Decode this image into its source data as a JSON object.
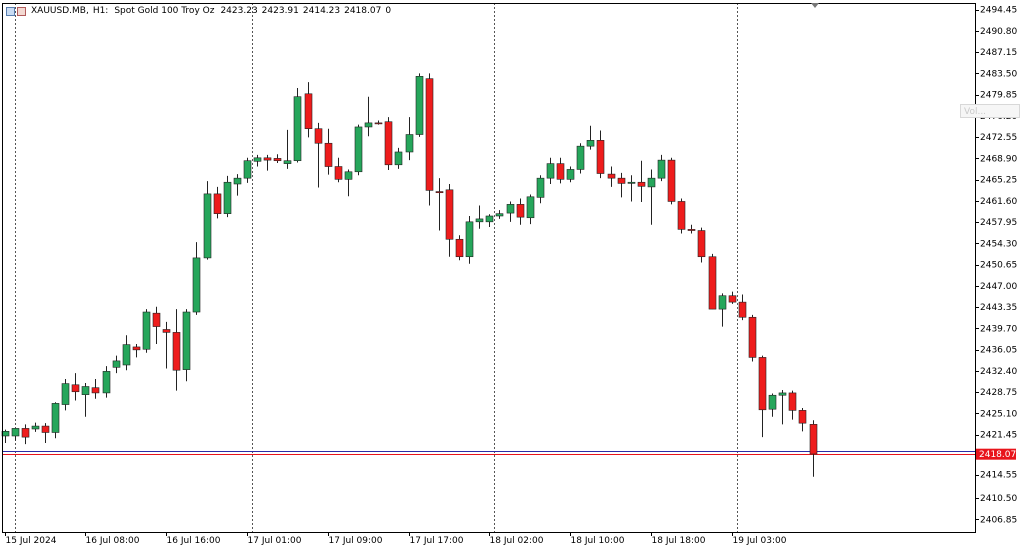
{
  "header": {
    "symbol": "XAUUSD.MB,",
    "timeframe": "H1:",
    "description": "Spot Gold 100 Troy Oz",
    "open": "2423.23",
    "high": "2423.91",
    "low": "2414.23",
    "close": "2418.07",
    "extra": "0"
  },
  "ghost_label": "Vol...",
  "chart_data": {
    "type": "candlestick",
    "symbol": "XAUUSD.MB",
    "timeframe": "H1",
    "ylim": [
      2404.7,
      2495.6
    ],
    "y_tick_labels": [
      "2494.45",
      "2490.80",
      "2487.15",
      "2483.50",
      "2479.85",
      "2476.20",
      "2472.55",
      "2468.90",
      "2465.25",
      "2461.60",
      "2457.95",
      "2454.30",
      "2450.65",
      "2447.00",
      "2443.35",
      "2439.70",
      "2436.05",
      "2432.40",
      "2428.75",
      "2425.10",
      "2421.45",
      "2418.07",
      "2414.55",
      "2410.50",
      "2406.85"
    ],
    "x_tick_labels": [
      "15 Jul 2024",
      "16 Jul 08:00",
      "16 Jul 16:00",
      "17 Jul 01:00",
      "17 Jul 09:00",
      "17 Jul 17:00",
      "18 Jul 02:00",
      "18 Jul 10:00",
      "18 Jul 18:00",
      "19 Jul 03:00"
    ],
    "x_tick_bars": [
      0,
      8,
      16,
      24,
      32,
      40,
      48,
      56,
      64,
      72
    ],
    "session_separator_bars": [
      1,
      24.5,
      48.5,
      72.5
    ],
    "bid_price": 2418.07,
    "ask_price": 2418.57,
    "bid_color": "#e8141b",
    "ask_color": "#2b2ba6",
    "bull_color": "#26a65b",
    "bear_color": "#ee1c1c",
    "candles": [
      {
        "o": 2421.2,
        "h": 2422.3,
        "l": 2420.0,
        "c": 2422.0
      },
      {
        "o": 2421.2,
        "h": 2422.6,
        "l": 2420.4,
        "c": 2422.5
      },
      {
        "o": 2422.5,
        "h": 2423.2,
        "l": 2419.8,
        "c": 2421.0
      },
      {
        "o": 2422.4,
        "h": 2423.5,
        "l": 2421.9,
        "c": 2422.9
      },
      {
        "o": 2422.9,
        "h": 2423.4,
        "l": 2420.0,
        "c": 2421.8
      },
      {
        "o": 2421.8,
        "h": 2427.0,
        "l": 2420.8,
        "c": 2426.8
      },
      {
        "o": 2426.6,
        "h": 2431.0,
        "l": 2425.6,
        "c": 2430.2
      },
      {
        "o": 2430.0,
        "h": 2432.0,
        "l": 2427.3,
        "c": 2428.8
      },
      {
        "o": 2428.3,
        "h": 2430.3,
        "l": 2424.5,
        "c": 2429.7
      },
      {
        "o": 2429.5,
        "h": 2431.0,
        "l": 2427.6,
        "c": 2428.6
      },
      {
        "o": 2428.6,
        "h": 2433.2,
        "l": 2427.8,
        "c": 2432.3
      },
      {
        "o": 2433.0,
        "h": 2435.0,
        "l": 2432.0,
        "c": 2434.1
      },
      {
        "o": 2433.4,
        "h": 2438.5,
        "l": 2432.5,
        "c": 2436.9
      },
      {
        "o": 2436.5,
        "h": 2437.0,
        "l": 2434.7,
        "c": 2436.0
      },
      {
        "o": 2436.1,
        "h": 2443.0,
        "l": 2435.5,
        "c": 2442.5
      },
      {
        "o": 2442.3,
        "h": 2443.4,
        "l": 2437.0,
        "c": 2440.0
      },
      {
        "o": 2439.5,
        "h": 2440.8,
        "l": 2432.8,
        "c": 2439.0
      },
      {
        "o": 2439.0,
        "h": 2443.0,
        "l": 2429.0,
        "c": 2432.5
      },
      {
        "o": 2432.6,
        "h": 2443.0,
        "l": 2430.6,
        "c": 2442.5
      },
      {
        "o": 2442.5,
        "h": 2454.5,
        "l": 2442.0,
        "c": 2451.8
      },
      {
        "o": 2451.8,
        "h": 2465.0,
        "l": 2451.5,
        "c": 2462.8
      },
      {
        "o": 2462.8,
        "h": 2464.0,
        "l": 2458.6,
        "c": 2459.4
      },
      {
        "o": 2459.4,
        "h": 2465.9,
        "l": 2458.8,
        "c": 2464.8
      },
      {
        "o": 2464.5,
        "h": 2466.2,
        "l": 2462.5,
        "c": 2465.5
      },
      {
        "o": 2465.5,
        "h": 2469.0,
        "l": 2464.7,
        "c": 2468.5
      },
      {
        "o": 2468.4,
        "h": 2469.5,
        "l": 2467.5,
        "c": 2469.0
      },
      {
        "o": 2469.0,
        "h": 2469.5,
        "l": 2466.8,
        "c": 2468.6
      },
      {
        "o": 2468.9,
        "h": 2469.6,
        "l": 2468.1,
        "c": 2468.5
      },
      {
        "o": 2468.0,
        "h": 2473.8,
        "l": 2467.1,
        "c": 2468.5
      },
      {
        "o": 2468.5,
        "h": 2481.0,
        "l": 2468.2,
        "c": 2479.5
      },
      {
        "o": 2480.0,
        "h": 2482.0,
        "l": 2472.5,
        "c": 2474.0
      },
      {
        "o": 2474.0,
        "h": 2475.0,
        "l": 2463.9,
        "c": 2471.5
      },
      {
        "o": 2471.5,
        "h": 2474.0,
        "l": 2466.1,
        "c": 2467.5
      },
      {
        "o": 2467.5,
        "h": 2469.0,
        "l": 2464.8,
        "c": 2465.3
      },
      {
        "o": 2465.3,
        "h": 2467.0,
        "l": 2462.4,
        "c": 2466.6
      },
      {
        "o": 2466.6,
        "h": 2474.7,
        "l": 2466.0,
        "c": 2474.3
      },
      {
        "o": 2474.3,
        "h": 2479.5,
        "l": 2472.7,
        "c": 2475.0
      },
      {
        "o": 2475.0,
        "h": 2475.4,
        "l": 2474.7,
        "c": 2474.9
      },
      {
        "o": 2475.2,
        "h": 2476.0,
        "l": 2466.9,
        "c": 2467.8
      },
      {
        "o": 2467.8,
        "h": 2470.7,
        "l": 2467.1,
        "c": 2470.0
      },
      {
        "o": 2470.0,
        "h": 2476.0,
        "l": 2468.6,
        "c": 2473.0
      },
      {
        "o": 2473.0,
        "h": 2483.5,
        "l": 2472.6,
        "c": 2483.0
      },
      {
        "o": 2482.6,
        "h": 2483.5,
        "l": 2460.8,
        "c": 2463.4
      },
      {
        "o": 2463.2,
        "h": 2465.5,
        "l": 2456.5,
        "c": 2463.0
      },
      {
        "o": 2463.5,
        "h": 2464.5,
        "l": 2452.0,
        "c": 2455.0
      },
      {
        "o": 2455.0,
        "h": 2455.7,
        "l": 2451.4,
        "c": 2452.0
      },
      {
        "o": 2452.0,
        "h": 2459.0,
        "l": 2450.8,
        "c": 2458.0
      },
      {
        "o": 2458.0,
        "h": 2460.8,
        "l": 2456.8,
        "c": 2458.5
      },
      {
        "o": 2458.0,
        "h": 2459.3,
        "l": 2457.1,
        "c": 2459.0
      },
      {
        "o": 2459.0,
        "h": 2460.0,
        "l": 2458.5,
        "c": 2459.4
      },
      {
        "o": 2459.5,
        "h": 2461.5,
        "l": 2458.0,
        "c": 2461.0
      },
      {
        "o": 2461.0,
        "h": 2462.0,
        "l": 2457.5,
        "c": 2458.8
      },
      {
        "o": 2458.7,
        "h": 2462.7,
        "l": 2457.6,
        "c": 2462.3
      },
      {
        "o": 2462.2,
        "h": 2466.0,
        "l": 2461.2,
        "c": 2465.5
      },
      {
        "o": 2465.5,
        "h": 2469.0,
        "l": 2464.5,
        "c": 2468.0
      },
      {
        "o": 2468.0,
        "h": 2469.0,
        "l": 2464.6,
        "c": 2465.3
      },
      {
        "o": 2465.3,
        "h": 2467.5,
        "l": 2464.8,
        "c": 2467.0
      },
      {
        "o": 2467.0,
        "h": 2471.5,
        "l": 2466.3,
        "c": 2471.0
      },
      {
        "o": 2471.0,
        "h": 2474.5,
        "l": 2470.4,
        "c": 2472.0
      },
      {
        "o": 2472.0,
        "h": 2473.7,
        "l": 2465.5,
        "c": 2466.3
      },
      {
        "o": 2466.2,
        "h": 2467.5,
        "l": 2464.0,
        "c": 2465.5
      },
      {
        "o": 2465.5,
        "h": 2466.4,
        "l": 2462.2,
        "c": 2464.6
      },
      {
        "o": 2464.6,
        "h": 2466.0,
        "l": 2461.5,
        "c": 2464.8
      },
      {
        "o": 2464.8,
        "h": 2468.5,
        "l": 2461.4,
        "c": 2464.1
      },
      {
        "o": 2464.0,
        "h": 2467.0,
        "l": 2457.5,
        "c": 2465.5
      },
      {
        "o": 2465.5,
        "h": 2469.5,
        "l": 2465.0,
        "c": 2468.6
      },
      {
        "o": 2468.6,
        "h": 2469.0,
        "l": 2461.0,
        "c": 2461.5
      },
      {
        "o": 2461.5,
        "h": 2462.0,
        "l": 2456.0,
        "c": 2456.7
      },
      {
        "o": 2456.7,
        "h": 2457.5,
        "l": 2456.0,
        "c": 2456.5
      },
      {
        "o": 2456.5,
        "h": 2457.0,
        "l": 2451.0,
        "c": 2452.0
      },
      {
        "o": 2452.0,
        "h": 2452.5,
        "l": 2443.0,
        "c": 2443.0
      },
      {
        "o": 2443.0,
        "h": 2445.7,
        "l": 2440.0,
        "c": 2445.3
      },
      {
        "o": 2445.3,
        "h": 2446.0,
        "l": 2443.9,
        "c": 2444.2
      },
      {
        "o": 2444.2,
        "h": 2445.5,
        "l": 2441.1,
        "c": 2441.6
      },
      {
        "o": 2441.6,
        "h": 2442.0,
        "l": 2434.0,
        "c": 2434.7
      },
      {
        "o": 2434.7,
        "h": 2435.0,
        "l": 2421.0,
        "c": 2425.7
      },
      {
        "o": 2425.8,
        "h": 2428.5,
        "l": 2424.5,
        "c": 2428.2
      },
      {
        "o": 2428.2,
        "h": 2429.1,
        "l": 2423.2,
        "c": 2428.6
      },
      {
        "o": 2428.6,
        "h": 2429.0,
        "l": 2424.0,
        "c": 2425.6
      },
      {
        "o": 2425.6,
        "h": 2426.0,
        "l": 2422.0,
        "c": 2423.4
      },
      {
        "o": 2423.2,
        "h": 2423.9,
        "l": 2414.2,
        "c": 2418.1
      }
    ]
  }
}
